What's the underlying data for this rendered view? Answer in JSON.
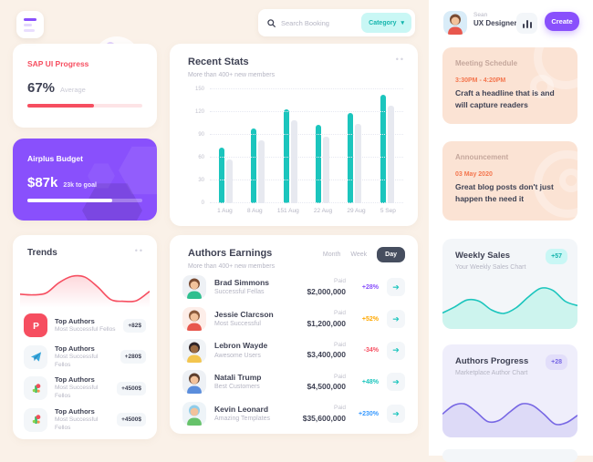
{
  "topbar": {
    "search_placeholder": "Search Booking",
    "category_label": "Category"
  },
  "profile": {
    "name": "Sean",
    "role": "UX Designer",
    "create_label": "Create",
    "avatar": {
      "bg": "#d9ecf8",
      "hair": "#7a4b32",
      "skin": "#f2c29b",
      "shirt": "#e8574d"
    }
  },
  "sap": {
    "title": "SAP UI Progress",
    "value": "67%",
    "value_label": "Average",
    "progress_pct": 58,
    "accent": "#f64e60"
  },
  "budget": {
    "title": "Airplus Budget",
    "value": "$87k",
    "goal_label": "23k to goal",
    "progress_pct": 74,
    "accent": "#8950fc"
  },
  "trends": {
    "title": "Trends",
    "menu": "••",
    "items": [
      {
        "icon": "patreon",
        "title": "Top Authors",
        "subtitle": "Most Successful Fellos",
        "amount": "+82$"
      },
      {
        "icon": "telegram",
        "title": "Top Authors",
        "subtitle": "Most Successful Fellos",
        "amount": "+280$"
      },
      {
        "icon": "palette",
        "title": "Top Authors",
        "subtitle": "Most Successful Fellos",
        "amount": "+4500$"
      },
      {
        "icon": "palette",
        "title": "Top Authors",
        "subtitle": "Most Successful Fellos",
        "amount": "+4500$"
      }
    ]
  },
  "recent": {
    "title": "Recent Stats",
    "subtitle": "More than 400+ new members",
    "menu": "••"
  },
  "earnings": {
    "title": "Authors Earnings",
    "subtitle": "More than 400+ new members",
    "tabs": [
      {
        "label": "Month",
        "active": false
      },
      {
        "label": "Week",
        "active": false
      },
      {
        "label": "Day",
        "active": true
      }
    ],
    "paid_label": "Paid",
    "rows": [
      {
        "name": "Brad Simmons",
        "subtitle": "Successful Fellas",
        "amount": "$2,000,000",
        "change": "+28%",
        "change_color": "#8950fc",
        "avatar": {
          "bg": "#eef1f5",
          "hair": "#7a4b32",
          "skin": "#f2c29b",
          "shirt": "#2fbf8f"
        }
      },
      {
        "name": "Jessie Clarcson",
        "subtitle": "Most Successful",
        "amount": "$1,200,000",
        "change": "+52%",
        "change_color": "#ffa800",
        "avatar": {
          "bg": "#fdeee9",
          "hair": "#8a5a3b",
          "skin": "#f2c29b",
          "shirt": "#e8574d"
        }
      },
      {
        "name": "Lebron Wayde",
        "subtitle": "Awesome Users",
        "amount": "$3,400,000",
        "change": "-34%",
        "change_color": "#f64e60",
        "avatar": {
          "bg": "#f0f3f6",
          "hair": "#2f2427",
          "skin": "#9c6b43",
          "shirt": "#f3c54e"
        }
      },
      {
        "name": "Natali Trump",
        "subtitle": "Best Customers",
        "amount": "$4,500,000",
        "change": "+48%",
        "change_color": "#1bc5bd",
        "avatar": {
          "bg": "#eef1f5",
          "hair": "#5d3f2e",
          "skin": "#f2c29b",
          "shirt": "#5a8ddc"
        }
      },
      {
        "name": "Kevin Leonard",
        "subtitle": "Amazing Templates",
        "amount": "$35,600,000",
        "change": "+230%",
        "change_color": "#3699ff",
        "avatar": {
          "bg": "#eef4f8",
          "hair": "#8fcdea",
          "skin": "#f2c29b",
          "shirt": "#66c26a"
        }
      }
    ]
  },
  "meeting": {
    "title": "Meeting Schedule",
    "time": "3:30PM - 4:20PM",
    "body": "Craft a headline that is and will capture readers"
  },
  "announcement": {
    "title": "Announcement",
    "date": "03 May 2020",
    "body": "Great blog posts don't just happen the need it"
  },
  "weekly_sales": {
    "title": "Weekly Sales",
    "subtitle": "Your Weekly Sales Chart",
    "badge": "+57",
    "accent": "#1bc5bd"
  },
  "authors_progress": {
    "title": "Authors Progress",
    "subtitle": "Marketplace Author Chart",
    "badge": "+28",
    "accent": "#7767e4"
  },
  "chart_data": [
    {
      "type": "bar",
      "title": "Recent Stats",
      "categories": [
        "1 Aug",
        "8 Aug",
        "151 Aug",
        "22 Aug",
        "29 Aug",
        "5 Sep"
      ],
      "series": [
        {
          "name": "Current",
          "color": "#1bc5bd",
          "values": [
            73,
            98,
            124,
            103,
            119,
            143
          ]
        },
        {
          "name": "Previous",
          "color": "#e7e9f0",
          "values": [
            58,
            83,
            109,
            88,
            104,
            128
          ]
        }
      ],
      "ylim": [
        0,
        150
      ],
      "yticks": [
        0,
        30,
        60,
        90,
        120,
        150
      ],
      "grid": "dotted-horizontal",
      "legend": "none"
    },
    {
      "type": "area",
      "name": "Trends sparkline",
      "color": "#f64e60",
      "points": [
        0.3,
        0.28,
        0.33,
        0.62,
        0.8,
        0.78,
        0.5,
        0.15,
        0.1,
        0.12,
        0.38
      ]
    },
    {
      "type": "area",
      "name": "Weekly Sales sparkline",
      "color": "#1bc5bd",
      "points": [
        0.28,
        0.42,
        0.58,
        0.55,
        0.35,
        0.27,
        0.4,
        0.65,
        0.85,
        0.8,
        0.55,
        0.45
      ]
    },
    {
      "type": "area",
      "name": "Authors Progress sparkline",
      "color": "#7767e4",
      "points": [
        0.45,
        0.65,
        0.68,
        0.5,
        0.28,
        0.3,
        0.5,
        0.68,
        0.65,
        0.45,
        0.22,
        0.25,
        0.42
      ]
    }
  ]
}
